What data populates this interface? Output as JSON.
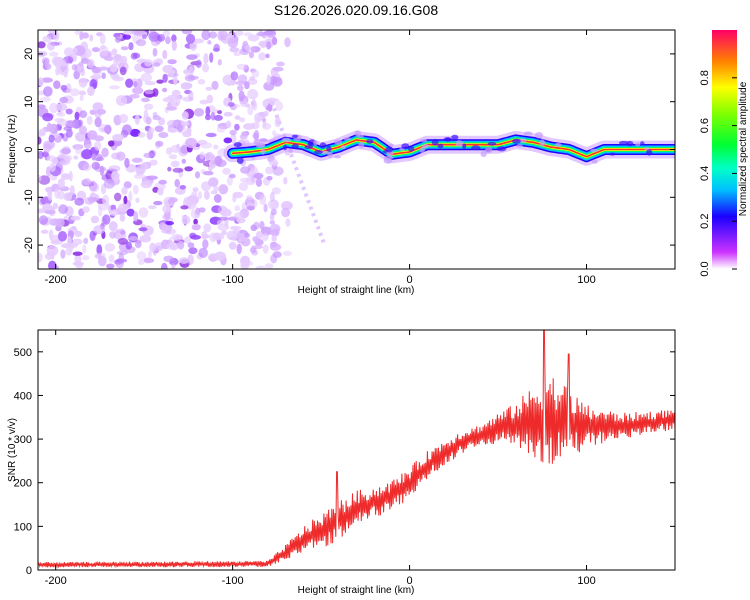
{
  "title": "S126.2026.020.09.16.G08",
  "chart_data": [
    {
      "type": "heatmap",
      "title": "S126.2026.020.09.16.G08",
      "xlabel": "Height of straight line (km)",
      "ylabel": "Frequency (Hz)",
      "xlim": [
        -210,
        150
      ],
      "ylim": [
        -25,
        25
      ],
      "xticks": [
        -200,
        -100,
        0,
        100
      ],
      "yticks": [
        20,
        10,
        0,
        -10,
        -20
      ],
      "noise_region_x": [
        -210,
        -80
      ],
      "ridge": {
        "x": [
          -100,
          -90,
          -80,
          -70,
          -60,
          -50,
          -40,
          -30,
          -20,
          -10,
          0,
          10,
          20,
          30,
          40,
          50,
          60,
          70,
          80,
          90,
          100,
          110,
          120,
          130,
          140,
          150
        ],
        "freq": [
          -0.8,
          -0.5,
          0,
          1.5,
          1,
          -0.5,
          0.5,
          2,
          1.5,
          -1,
          -0.5,
          1,
          1,
          1,
          1,
          1,
          2,
          1.5,
          0.5,
          0,
          -1.5,
          0,
          0,
          0,
          0,
          0
        ]
      },
      "colorbar": {
        "label": "Normalized spectral amplitude",
        "range": [
          0,
          1
        ],
        "ticks": [
          "0.0",
          "0.2",
          "0.4",
          "0.6",
          "0.8"
        ]
      }
    },
    {
      "type": "line",
      "title": "",
      "xlabel": "Height of straight line (km)",
      "ylabel": "SNR (10 * v/v)",
      "xlim": [
        -210,
        150
      ],
      "ylim": [
        0,
        550
      ],
      "xticks": [
        -200,
        -100,
        0,
        100
      ],
      "yticks": [
        0,
        100,
        200,
        300,
        400,
        500
      ],
      "series": [
        {
          "name": "SNR",
          "color": "#ee2a2a",
          "trend_x": [
            -210,
            -80,
            -70,
            -60,
            -50,
            -40,
            -30,
            -20,
            -10,
            0,
            10,
            20,
            30,
            40,
            50,
            60,
            70,
            80,
            90,
            100,
            110,
            120,
            130,
            140,
            150
          ],
          "trend_y": [
            12,
            14,
            40,
            70,
            90,
            110,
            140,
            155,
            170,
            200,
            240,
            270,
            295,
            310,
            325,
            335,
            340,
            345,
            335,
            330,
            330,
            330,
            335,
            340,
            345
          ],
          "spread_x": [
            -210,
            -80,
            -60,
            -40,
            -20,
            0,
            20,
            40,
            60,
            70,
            80,
            90,
            100,
            120,
            150
          ],
          "spread_y": [
            5,
            6,
            25,
            40,
            30,
            30,
            25,
            20,
            40,
            70,
            90,
            70,
            40,
            25,
            20
          ],
          "peaks": [
            {
              "x": -41,
              "y": 225
            },
            {
              "x": 76,
              "y": 548
            },
            {
              "x": 90,
              "y": 495
            }
          ]
        }
      ]
    }
  ]
}
